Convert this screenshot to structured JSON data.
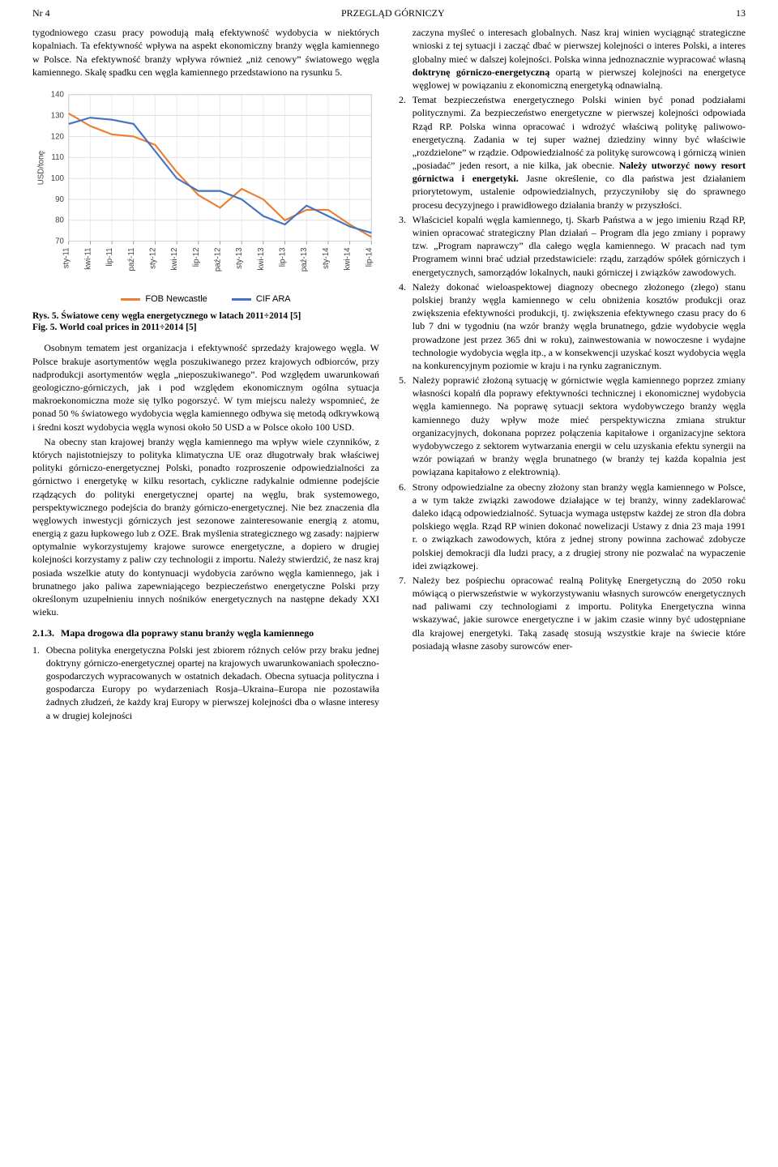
{
  "header": {
    "issue": "Nr 4",
    "journal": "PRZEGLĄD GÓRNICZY",
    "page": "13"
  },
  "left": {
    "p1": "tygodniowego czasu pracy powodują małą efektywność wydobycia w niektórych kopalniach. Ta efektywność wpływa na aspekt ekonomiczny branży węgla kamiennego w Polsce. Na efektywność branży wpływa również „niż cenowy” światowego węgla kamiennego. Skalę spadku cen węgla kamiennego przedstawiono na rysunku 5.",
    "fig_caption_pl_a": "Rys. 5. Światowe ceny węgla energetycznego w latach 2011÷2014 [5]",
    "fig_caption_en_a": "Fig. 5. World coal prices in 2011÷2014 [5]",
    "p2": "Osobnym tematem jest organizacja i efektywność sprzedaży krajowego węgla. W Polsce brakuje asortymentów węgla poszukiwanego przez krajowych odbiorców, przy nadprodukcji asortymentów węgla „nieposzukiwanego”. Pod względem uwarunkowań geologiczno-górniczych, jak i pod względem ekonomicznym ogólna sytuacja makroekonomiczna może się tylko pogorszyć. W tym miejscu należy wspomnieć, że ponad 50 % światowego wydobycia węgla kamiennego odbywa się metodą odkrywkową i średni koszt wydobycia węgla wynosi około 50 USD a w Polsce około 100 USD.",
    "p3": "Na obecny stan krajowej branży węgla kamiennego ma wpływ wiele czynników, z których najistotniejszy to polityka klimatyczna UE oraz długotrwały brak właściwej polityki górniczo-energetycznej Polski, ponadto rozproszenie odpowiedzialności za górnictwo i energetykę w kilku resortach, cykliczne radykalnie odmienne podejście rządzących do polityki energetycznej opartej na węglu, brak systemowego, perspektywicznego podejścia do branży górniczo-energetycznej. Nie bez znaczenia dla węglowych inwestycji górniczych jest sezonowe zainteresowanie energią z atomu, energią z gazu łupkowego lub z OZE. Brak myślenia strategicznego wg zasady: najpierw optymalnie wykorzystujemy krajowe surowce energetyczne, a dopiero w drugiej kolejności korzystamy z paliw czy technologii z importu. Należy stwierdzić, że nasz kraj posiada wszelkie atuty do kontynuacji wydobycia zarówno węgla kamiennego, jak i brunatnego jako paliwa zapewniającego bezpieczeństwo energetyczne Polski przy określonym uzupełnieniu innych nośników energetycznych na następne dekady XXI wieku.",
    "section_num": "2.1.3.",
    "section_title": "Mapa drogowa dla poprawy stanu branży węgla kamiennego",
    "li1": "Obecna polityka energetyczna Polski jest zbiorem różnych celów przy braku jednej doktryny górniczo-energetycznej opartej na krajowych uwarunkowaniach społeczno-gospodarczych wypracowanych w ostatnich dekadach. Obecna sytuacja polityczna i gospodarcza Europy po wydarzeniach Rosja–Ukraina–Europa nie pozostawiła żadnych złudzeń, że każdy kraj Europy w pierwszej kolejności dba o własne interesy a w drugiej kolejności"
  },
  "right": {
    "cont": "zaczyna myśleć o interesach globalnych. Nasz kraj winien wyciągnąć strategiczne wnioski z tej sytuacji i zacząć dbać w pierwszej kolejności o interes Polski, a interes globalny mieć w dalszej kolejności. Polska winna jednoznacznie wypracować własną ",
    "cont_bold": "doktrynę górniczo-energetyczną",
    "cont2": " opartą w pierwszej kolejności na energetyce węglowej w powiązaniu z ekonomiczną energetyką odnawialną.",
    "li2a": "Temat bezpieczeństwa energetycznego Polski winien być ponad podziałami politycznymi. Za bezpieczeństwo energetyczne w pierwszej kolejności odpowiada Rząd RP. Polska winna opracować i wdrożyć właściwą politykę paliwowo-energetyczną. Zadania w tej super ważnej dziedziny winny być właściwie „rozdzielone” w rządzie. Odpowiedzialność za politykę surowcową i górniczą winien „posiadać” jeden resort, a nie kilka, jak obecnie. ",
    "li2_bold": "Należy utworzyć nowy resort górnictwa i energetyki.",
    "li2b": " Jasne określenie, co dla państwa jest działaniem priorytetowym, ustalenie odpowiedzialnych, przyczyniłoby się do sprawnego procesu decyzyjnego i prawidłowego działania branży w przyszłości.",
    "li3": "Właściciel kopalń węgla kamiennego, tj. Skarb Państwa a w jego imieniu Rząd RP, winien opracować strategiczny Plan działań – Program dla jego zmiany i poprawy tzw. „Program naprawczy” dla całego węgla kamiennego. W pracach nad tym Programem winni brać udział przedstawiciele: rządu, zarządów spółek górniczych i energetycznych, samorządów lokalnych, nauki górniczej i związków zawodowych.",
    "li4": "Należy dokonać wieloaspektowej diagnozy obecnego złożonego (złego) stanu polskiej branży węgla kamiennego w celu obniżenia kosztów produkcji oraz zwiększenia efektywności produkcji, tj. zwiększenia efektywnego czasu pracy do 6 lub 7 dni w tygodniu (na wzór branży węgla brunatnego, gdzie wydobycie węgla prowadzone jest przez 365 dni w roku), zainwestowania w nowoczesne i wydajne technologie wydobycia węgla itp., a w konsekwencji uzyskać koszt wydobycia węgla na konkurencyjnym poziomie w kraju i na rynku zagranicznym.",
    "li5": "Należy poprawić złożoną sytuację w górnictwie węgla kamiennego poprzez zmiany własności kopalń dla poprawy efektywności technicznej i ekonomicznej wydobycia węgla kamiennego. Na poprawę sytuacji sektora wydobywczego branży węgla kamiennego duży wpływ może mieć perspektywiczna zmiana struktur organizacyjnych, dokonana poprzez połączenia kapitałowe i organizacyjne sektora wydobywczego z sektorem wytwarzania energii w celu uzyskania efektu synergii na wzór powiązań w branży węgla brunatnego (w branży tej każda kopalnia jest powiązana kapitałowo z elektrownią).",
    "li6": "Strony odpowiedzialne za obecny złożony stan branży węgla kamiennego w Polsce, a w tym także związki zawodowe działające w tej branży, winny zadeklarować daleko idącą odpowiedzialność. Sytuacja wymaga ustępstw każdej ze stron dla dobra polskiego węgla. Rząd RP winien dokonać nowelizacji Ustawy z dnia 23 maja 1991 r. o związkach zawodowych, która z jednej strony powinna zachować zdobycze polskiej demokracji dla ludzi pracy, a z drugiej strony nie pozwalać na wypaczenie idei związkowej.",
    "li7": "Należy bez pośpiechu opracować realną Politykę Energetyczną do 2050 roku mówiącą o pierwszeństwie w wykorzystywaniu własnych surowców energetycznych nad paliwami czy technologiami z importu. Polityka Energetyczna winna wskazywać, jakie surowce energetyczne i w jakim czasie winny być udostępniane dla krajowej energetyki. Taką zasadę stosują wszystkie kraje na świecie które posiadają własne zasoby surowców ener-"
  },
  "chart": {
    "y_label": "USD/tonę",
    "y_min": 70,
    "y_max": 140,
    "y_tick_step": 10,
    "x_labels": [
      "sty-11",
      "kwi-11",
      "lip-11",
      "paź-11",
      "sty-12",
      "kwi-12",
      "lip-12",
      "paź-12",
      "sty-13",
      "kwi-13",
      "lip-13",
      "paź-13",
      "sty-14",
      "kwi-14",
      "lip-14"
    ],
    "series": [
      {
        "name": "FOB Newcastle",
        "color": "#ed7d31",
        "values": [
          131,
          125,
          121,
          120,
          116,
          103,
          92,
          86,
          95,
          90,
          80,
          85,
          85,
          78,
          72
        ]
      },
      {
        "name": "CIF ARA",
        "color": "#4472c4",
        "values": [
          126,
          129,
          128,
          126,
          113,
          100,
          94,
          94,
          90,
          82,
          78,
          87,
          82,
          77,
          74
        ]
      }
    ],
    "grid_color": "#d9d9d9",
    "axis_color": "#808080",
    "bg": "#ffffff",
    "line_width": 2.2,
    "font_family": "Arial, sans-serif",
    "tick_font_size": 10
  }
}
